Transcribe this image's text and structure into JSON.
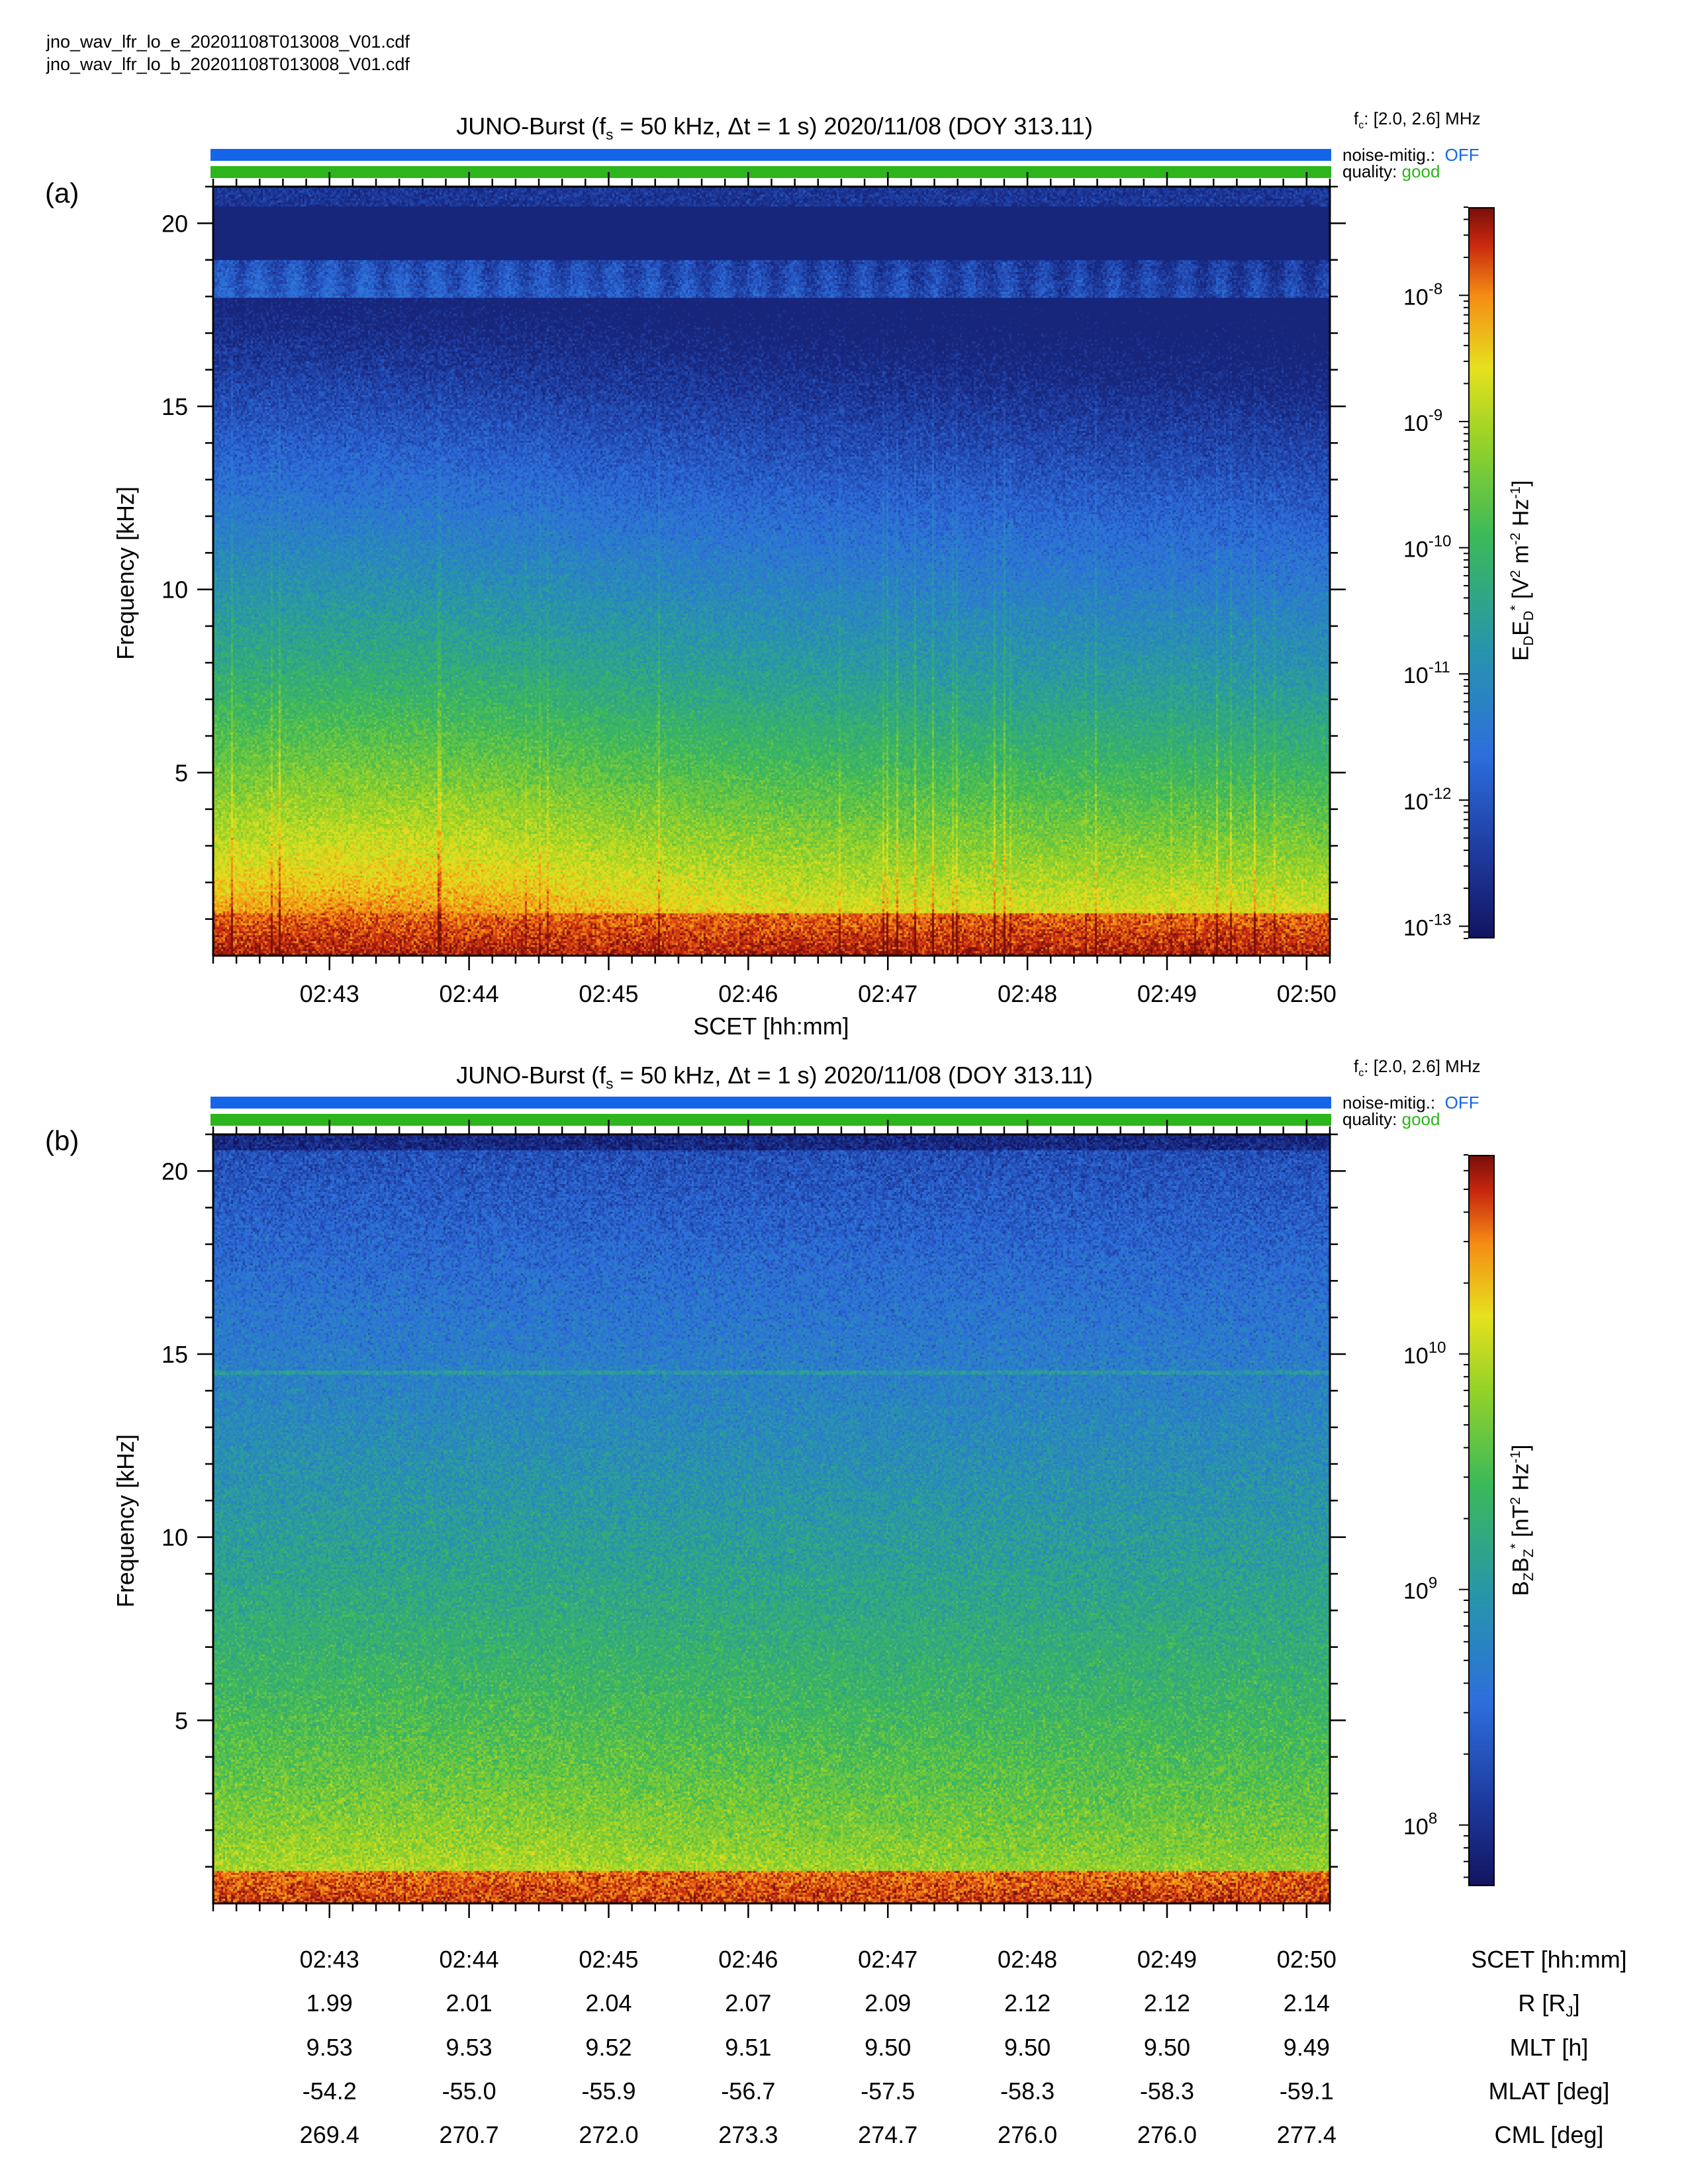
{
  "files": [
    "jno_wav_lfr_lo_e_20201108T013008_V01.cdf",
    "jno_wav_lfr_lo_b_20201108T013008_V01.cdf"
  ],
  "shared": {
    "xlabel": "SCET [hh:mm]",
    "time_ticks": [
      "02:43",
      "02:44",
      "02:45",
      "02:46",
      "02:47",
      "02:48",
      "02:49",
      "02:50"
    ],
    "freq_ticks": [
      "5",
      "10",
      "15",
      "20"
    ],
    "fc_label": "[2.0, 2.6] MHz",
    "noise_label": "noise-mitig.:",
    "noise_value": "OFF",
    "quality_label": "quality:",
    "quality_value": "good",
    "colors": {
      "noise_bar": "#1565e8",
      "quality_bar": "#2db51c",
      "noise_text": "#1565e8",
      "quality_text": "#2db51c"
    }
  },
  "chart_data": [
    {
      "type": "heatmap",
      "panel_label": "(a)",
      "title_main": "JUNO-Burst (f",
      "title_rest": " = 50 kHz, Δt = 1 s)  2020/11/08 (DOY 313.11)",
      "ylabel": "Frequency [kHz]",
      "xlabel": "SCET [hh:mm]",
      "xlim": [
        "02:42:10",
        "02:50:10"
      ],
      "ylim": [
        0,
        21
      ],
      "colorbar": {
        "scale": "log",
        "range": [
          8e-14,
          5e-08
        ],
        "ticks": [
          "-8",
          "-9",
          "-10",
          "-11",
          "-12",
          "-13"
        ],
        "label": "E_D E_D* [V^2 m^-2 Hz^-1]"
      }
    },
    {
      "type": "heatmap",
      "panel_label": "(b)",
      "title_main": "JUNO-Burst (f",
      "title_rest": " = 50 kHz, Δt = 1 s)  2020/11/08 (DOY 313.11)",
      "ylabel": "Frequency [kHz]",
      "xlabel": "SCET [hh:mm]",
      "xlim": [
        "02:42:10",
        "02:50:10"
      ],
      "ylim": [
        0,
        21
      ],
      "colorbar": {
        "scale": "log",
        "range": [
          55000000.0,
          70000000000.0
        ],
        "ticks": [
          "10",
          "9",
          "8"
        ],
        "label": "B_Z B_Z* [nT^2 Hz^-1]"
      }
    }
  ],
  "ephemeris": {
    "rows": [
      {
        "label": "R [R",
        "label_sub": "J",
        "label_end": "]",
        "values": [
          "1.99",
          "2.01",
          "2.04",
          "2.07",
          "2.09",
          "2.12",
          "2.12",
          "2.14"
        ]
      },
      {
        "label": "MLT [h]",
        "values": [
          "9.53",
          "9.53",
          "9.52",
          "9.51",
          "9.50",
          "9.50",
          "9.50",
          "9.49"
        ]
      },
      {
        "label": "MLAT [deg]",
        "values": [
          "-54.2",
          "-55.0",
          "-55.9",
          "-56.7",
          "-57.5",
          "-58.3",
          "-58.3",
          "-59.1"
        ]
      },
      {
        "label": "CML [deg]",
        "values": [
          "269.4",
          "270.7",
          "272.0",
          "273.3",
          "274.7",
          "276.0",
          "276.0",
          "277.4"
        ]
      }
    ]
  }
}
